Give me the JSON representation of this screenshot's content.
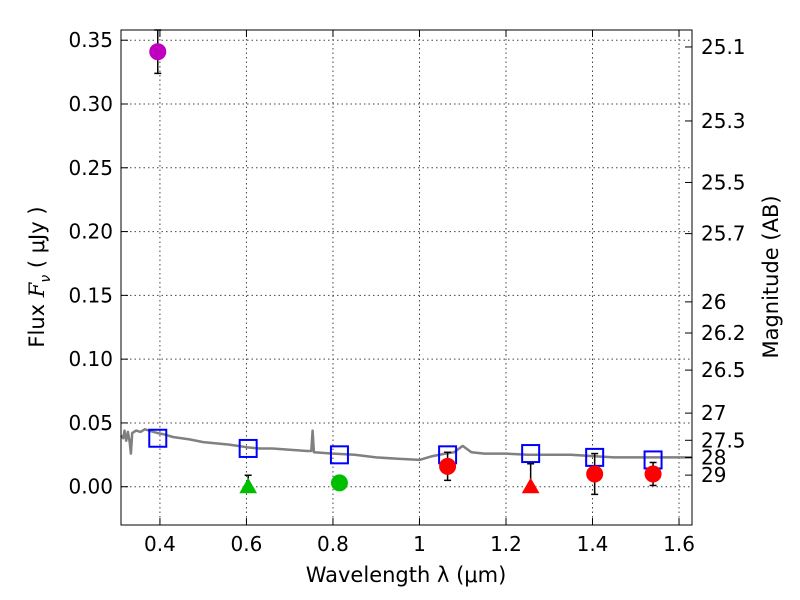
{
  "chart_data": {
    "type": "scatter",
    "xlabel": "Wavelength  λ (μm)",
    "ylabel_prefix": "Flux  ",
    "ylabel_symbol": "F",
    "ylabel_subscript": "ν",
    "ylabel_unit": "  ( μJy )",
    "y2label": "Magnitude (AB)",
    "xlim": [
      0.31,
      1.63
    ],
    "ylim": [
      -0.03,
      0.358
    ],
    "grid": true,
    "xticks": [
      0.4,
      0.6,
      0.8,
      1.0,
      1.2,
      1.4,
      1.6
    ],
    "xtick_labels": [
      "0.4",
      "0.6",
      "0.8",
      "1",
      "1.2",
      "1.4",
      "1.6"
    ],
    "yticks": [
      0.0,
      0.05,
      0.1,
      0.15,
      0.2,
      0.25,
      0.3,
      0.35
    ],
    "ytick_labels": [
      "0.00",
      "0.05",
      "0.10",
      "0.15",
      "0.20",
      "0.25",
      "0.30",
      "0.35"
    ],
    "y2ticks": [
      {
        "label": "25.1",
        "flux": 0.3447
      },
      {
        "label": "25.3",
        "flux": 0.2867
      },
      {
        "label": "25.5",
        "flux": 0.2385
      },
      {
        "label": "25.7",
        "flux": 0.1984
      },
      {
        "label": "26",
        "flux": 0.1449
      },
      {
        "label": "26.2",
        "flux": 0.1205
      },
      {
        "label": "26.5",
        "flux": 0.0914
      },
      {
        "label": "27",
        "flux": 0.0577
      },
      {
        "label": "27.5",
        "flux": 0.0364
      },
      {
        "label": "28",
        "flux": 0.0229
      },
      {
        "label": "29",
        "flux": 0.0091
      }
    ],
    "model_spectrum": {
      "color": "#808080",
      "points": [
        [
          0.31,
          0.04
        ],
        [
          0.315,
          0.038
        ],
        [
          0.318,
          0.044
        ],
        [
          0.322,
          0.036
        ],
        [
          0.326,
          0.043
        ],
        [
          0.33,
          0.035
        ],
        [
          0.333,
          0.026
        ],
        [
          0.336,
          0.042
        ],
        [
          0.345,
          0.044
        ],
        [
          0.355,
          0.043
        ],
        [
          0.365,
          0.045
        ],
        [
          0.375,
          0.044
        ],
        [
          0.385,
          0.043
        ],
        [
          0.395,
          0.042
        ],
        [
          0.41,
          0.041
        ],
        [
          0.43,
          0.039
        ],
        [
          0.45,
          0.038
        ],
        [
          0.47,
          0.037
        ],
        [
          0.5,
          0.035
        ],
        [
          0.53,
          0.034
        ],
        [
          0.56,
          0.033
        ],
        [
          0.58,
          0.032
        ],
        [
          0.6,
          0.031
        ],
        [
          0.63,
          0.03
        ],
        [
          0.66,
          0.03
        ],
        [
          0.7,
          0.029
        ],
        [
          0.74,
          0.028
        ],
        [
          0.75,
          0.028
        ],
        [
          0.753,
          0.044
        ],
        [
          0.756,
          0.027
        ],
        [
          0.8,
          0.026
        ],
        [
          0.85,
          0.025
        ],
        [
          0.9,
          0.023
        ],
        [
          0.95,
          0.022
        ],
        [
          1.0,
          0.021
        ],
        [
          1.03,
          0.024
        ],
        [
          1.06,
          0.026
        ],
        [
          1.08,
          0.027
        ],
        [
          1.1,
          0.032
        ],
        [
          1.12,
          0.027
        ],
        [
          1.15,
          0.026
        ],
        [
          1.2,
          0.026
        ],
        [
          1.25,
          0.025
        ],
        [
          1.3,
          0.025
        ],
        [
          1.35,
          0.025
        ],
        [
          1.4,
          0.024
        ],
        [
          1.45,
          0.023
        ],
        [
          1.5,
          0.023
        ],
        [
          1.55,
          0.023
        ],
        [
          1.63,
          0.023
        ]
      ]
    },
    "model_photometry": {
      "color": "#0000ff",
      "marker": "open-square",
      "x": [
        0.395,
        0.604,
        0.815,
        1.065,
        1.257,
        1.405,
        1.54
      ],
      "y": [
        0.038,
        0.03,
        0.025,
        0.025,
        0.026,
        0.023,
        0.021
      ]
    },
    "observed": [
      {
        "x": 0.395,
        "y": 0.341,
        "err": 0.017,
        "marker": "circle",
        "color": "#bf00bf"
      },
      {
        "x": 0.604,
        "y": 0.0,
        "err_up": 0.009,
        "err_down": 0.0,
        "marker": "triangle",
        "color": "#00bf00"
      },
      {
        "x": 0.815,
        "y": 0.003,
        "err": 0.004,
        "marker": "circle",
        "color": "#00bf00"
      },
      {
        "x": 1.065,
        "y": 0.016,
        "err": 0.011,
        "marker": "circle",
        "color": "#ff0000"
      },
      {
        "x": 1.257,
        "y": 0.0,
        "err_up": 0.018,
        "err_down": 0.0,
        "marker": "triangle",
        "color": "#ff0000"
      },
      {
        "x": 1.405,
        "y": 0.01,
        "err": 0.016,
        "marker": "circle",
        "color": "#ff0000"
      },
      {
        "x": 1.54,
        "y": 0.01,
        "err": 0.009,
        "marker": "circle",
        "color": "#ff0000"
      }
    ]
  }
}
